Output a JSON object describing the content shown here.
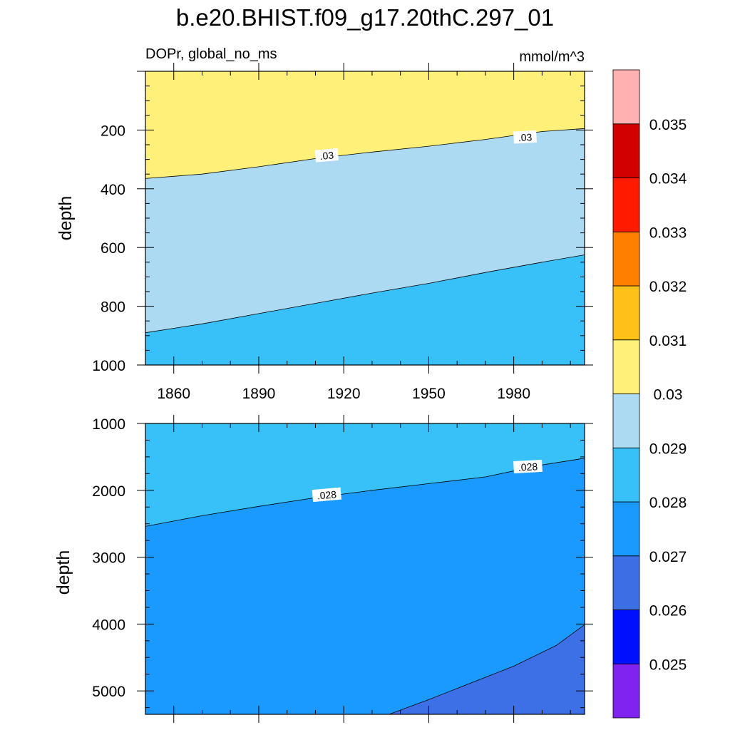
{
  "title": "b.e20.BHIST.f09_g17.20thC.297_01",
  "left_string": "DOPr, global_no_ms",
  "right_string": "mmol/m^3",
  "chart_data": {
    "type": "contour",
    "variable": "DOPr",
    "units": "mmol/m^3",
    "x_range": [
      1850,
      2005
    ],
    "x_ticks": [
      1860,
      1890,
      1920,
      1950,
      1980
    ],
    "x_tick_labels": [
      "1860",
      "1890",
      "1920",
      "1950",
      "1980"
    ],
    "panels": [
      {
        "name": "upper",
        "ylabel": "depth",
        "ylim": [
          0,
          1000
        ],
        "y_reversed": true,
        "y_ticks": [
          200,
          400,
          600,
          800,
          1000
        ],
        "y_tick_labels": [
          "200",
          "400",
          "600",
          "800",
          "1000"
        ],
        "show_x_labels": true,
        "fill_top": "#fff07a",
        "regions": [
          {
            "fill": "#acdaf2",
            "boundary": [
              [
                1850,
                365
              ],
              [
                1870,
                350
              ],
              [
                1890,
                325
              ],
              [
                1910,
                297
              ],
              [
                1930,
                275
              ],
              [
                1950,
                255
              ],
              [
                1970,
                232
              ],
              [
                1990,
                205
              ],
              [
                2005,
                195
              ]
            ]
          },
          {
            "fill": "#38c0f8",
            "boundary": [
              [
                1850,
                890
              ],
              [
                1870,
                860
              ],
              [
                1890,
                825
              ],
              [
                1910,
                790
              ],
              [
                1930,
                755
              ],
              [
                1950,
                722
              ],
              [
                1970,
                685
              ],
              [
                1990,
                650
              ],
              [
                2005,
                625
              ]
            ]
          }
        ],
        "contour_labels": [
          {
            "text": ".03",
            "x": 1914,
            "y": 287,
            "angle": -5
          },
          {
            "text": ".03",
            "x": 1984,
            "y": 225,
            "angle": -3
          }
        ]
      },
      {
        "name": "lower",
        "ylabel": "depth",
        "ylim": [
          1000,
          5350
        ],
        "y_reversed": true,
        "y_ticks": [
          1000,
          2000,
          3000,
          4000,
          5000
        ],
        "y_tick_labels": [
          "1000",
          "2000",
          "3000",
          "4000",
          "5000"
        ],
        "show_x_labels": false,
        "fill_top": "#38c0f8",
        "regions": [
          {
            "fill": "#1a9afe",
            "boundary": [
              [
                1850,
                2540
              ],
              [
                1870,
                2380
              ],
              [
                1890,
                2240
              ],
              [
                1910,
                2110
              ],
              [
                1930,
                2000
              ],
              [
                1950,
                1900
              ],
              [
                1970,
                1800
              ],
              [
                1990,
                1620
              ],
              [
                2005,
                1520
              ]
            ]
          },
          {
            "fill": "#3d70e6",
            "boundary": [
              [
                1936,
                5350
              ],
              [
                1950,
                5130
              ],
              [
                1965,
                4880
              ],
              [
                1980,
                4630
              ],
              [
                1995,
                4320
              ],
              [
                2005,
                4010
              ]
            ]
          }
        ],
        "contour_labels": [
          {
            "text": ".028",
            "x": 1914,
            "y": 2070,
            "angle": -5
          },
          {
            "text": ".028",
            "x": 1985,
            "y": 1650,
            "angle": -3
          }
        ]
      }
    ],
    "colorbar": {
      "colors": [
        "#8022f0",
        "#0010ff",
        "#3e6ee4",
        "#1a9afe",
        "#38c0f8",
        "#acdaf2",
        "#fff07a",
        "#ffc018",
        "#ff7f00",
        "#ff1a00",
        "#d30000",
        "#ffb1b1"
      ],
      "levels": [
        "0.025",
        "0.026",
        "0.027",
        "0.028",
        "0.029",
        "0.03",
        "0.031",
        "0.032",
        "0.033",
        "0.034",
        "0.035"
      ]
    }
  }
}
